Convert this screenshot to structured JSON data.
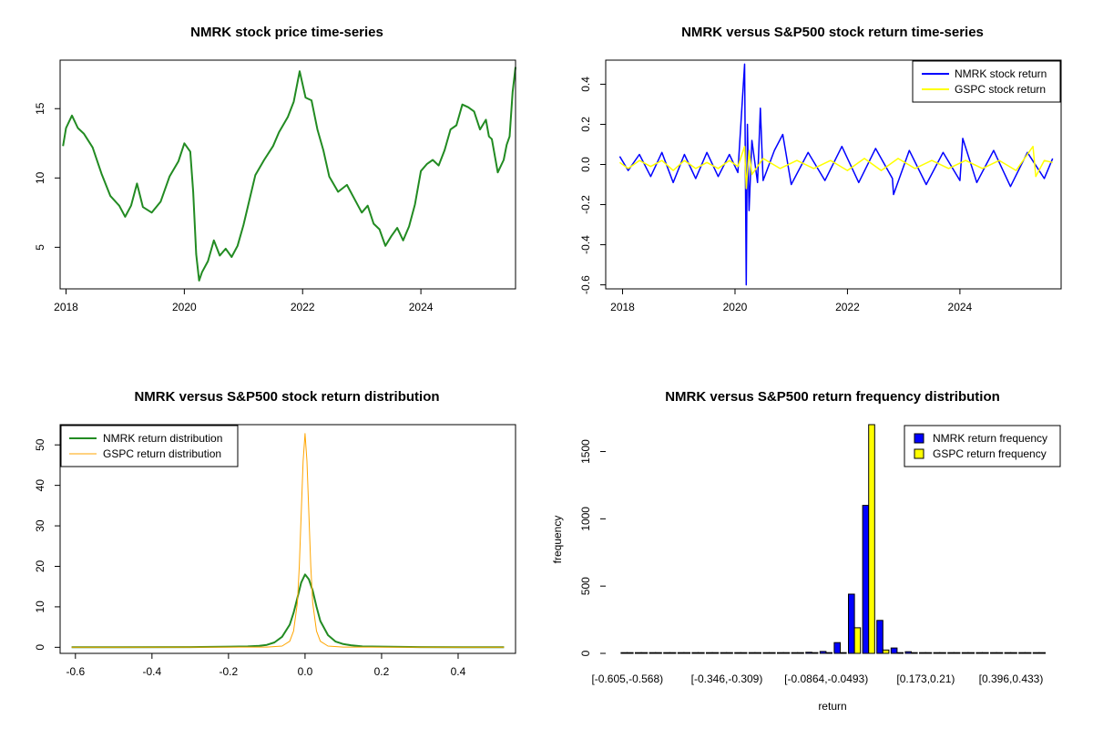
{
  "chart_data": [
    {
      "id": "price",
      "type": "line",
      "title": "NMRK stock price time-series",
      "xlabel": "",
      "ylabel": "",
      "xlim": [
        2017.9,
        2025.6
      ],
      "ylim": [
        2,
        18.5
      ],
      "x_ticks": [
        2018,
        2020,
        2022,
        2024
      ],
      "x_tick_labels": [
        "2018",
        "2020",
        "2022",
        "2024"
      ],
      "y_ticks": [
        5,
        10,
        15
      ],
      "y_tick_labels": [
        "5",
        "10",
        "15"
      ],
      "colors": {
        "line": "#228B22"
      },
      "series": [
        {
          "name": "NMRK",
          "x": [
            2017.95,
            2018.0,
            2018.1,
            2018.2,
            2018.3,
            2018.45,
            2018.6,
            2018.75,
            2018.9,
            2019.0,
            2019.1,
            2019.2,
            2019.3,
            2019.45,
            2019.6,
            2019.75,
            2019.9,
            2020.0,
            2020.1,
            2020.15,
            2020.2,
            2020.25,
            2020.3,
            2020.4,
            2020.5,
            2020.6,
            2020.7,
            2020.8,
            2020.9,
            2021.0,
            2021.1,
            2021.2,
            2021.35,
            2021.5,
            2021.6,
            2021.75,
            2021.85,
            2021.95,
            2022.05,
            2022.15,
            2022.25,
            2022.35,
            2022.45,
            2022.6,
            2022.75,
            2022.9,
            2023.0,
            2023.1,
            2023.2,
            2023.3,
            2023.4,
            2023.5,
            2023.6,
            2023.7,
            2023.8,
            2023.9,
            2024.0,
            2024.1,
            2024.2,
            2024.3,
            2024.4,
            2024.5,
            2024.6,
            2024.7,
            2024.8,
            2024.9,
            2025.0,
            2025.1,
            2025.15,
            2025.2,
            2025.3,
            2025.4,
            2025.45,
            2025.5,
            2025.55,
            2025.6
          ],
          "y": [
            12.3,
            13.6,
            14.5,
            13.6,
            13.2,
            12.2,
            10.3,
            8.7,
            8.0,
            7.2,
            8.0,
            9.6,
            7.9,
            7.5,
            8.3,
            10.1,
            11.2,
            12.5,
            11.9,
            9.0,
            4.5,
            2.6,
            3.2,
            4.0,
            5.5,
            4.4,
            4.9,
            4.3,
            5.1,
            6.6,
            8.4,
            10.2,
            11.3,
            12.3,
            13.3,
            14.4,
            15.5,
            17.7,
            15.8,
            15.6,
            13.5,
            12.0,
            10.1,
            9.0,
            9.5,
            8.3,
            7.5,
            8.0,
            6.7,
            6.3,
            5.1,
            5.8,
            6.4,
            5.5,
            6.5,
            8.1,
            10.5,
            11.0,
            11.3,
            10.9,
            12.0,
            13.5,
            13.8,
            15.3,
            15.1,
            14.8,
            13.5,
            14.2,
            13.0,
            12.8,
            10.4,
            11.3,
            12.4,
            13.0,
            16.2,
            18.0
          ]
        }
      ]
    },
    {
      "id": "returns",
      "type": "line",
      "title": "NMRK versus S&P500 stock return time-series",
      "xlabel": "",
      "ylabel": "",
      "xlim": [
        2017.7,
        2025.8
      ],
      "ylim": [
        -0.62,
        0.52
      ],
      "x_ticks": [
        2018,
        2020,
        2022,
        2024
      ],
      "x_tick_labels": [
        "2018",
        "2020",
        "2022",
        "2024"
      ],
      "y_ticks": [
        -0.6,
        -0.4,
        -0.2,
        0.0,
        0.2,
        0.4
      ],
      "y_tick_labels": [
        "-0.6",
        "-0.4",
        "-0.2",
        "0.0",
        "0.2",
        "0.4"
      ],
      "legend": {
        "placement": "top-right",
        "entries": [
          "NMRK stock return",
          "GSPC stock return"
        ]
      },
      "colors": {
        "nmrk": "#0000FF",
        "gspc": "#FFFF00"
      },
      "series": [
        {
          "name": "NMRK stock return",
          "x": [
            2017.95,
            2018.1,
            2018.3,
            2018.5,
            2018.7,
            2018.9,
            2019.1,
            2019.3,
            2019.5,
            2019.7,
            2019.9,
            2020.05,
            2020.17,
            2020.2,
            2020.22,
            2020.25,
            2020.3,
            2020.4,
            2020.45,
            2020.5,
            2020.7,
            2020.85,
            2021.0,
            2021.3,
            2021.6,
            2021.9,
            2022.2,
            2022.5,
            2022.8,
            2022.82,
            2023.1,
            2023.4,
            2023.7,
            2024.0,
            2024.05,
            2024.3,
            2024.6,
            2024.9,
            2025.2,
            2025.5,
            2025.65
          ],
          "y": [
            0.04,
            -0.03,
            0.05,
            -0.06,
            0.06,
            -0.09,
            0.05,
            -0.07,
            0.06,
            -0.06,
            0.05,
            -0.04,
            0.5,
            -0.6,
            0.2,
            -0.23,
            0.12,
            -0.09,
            0.28,
            -0.08,
            0.07,
            0.15,
            -0.1,
            0.06,
            -0.08,
            0.09,
            -0.09,
            0.08,
            -0.07,
            -0.15,
            0.07,
            -0.1,
            0.06,
            -0.08,
            0.13,
            -0.09,
            0.07,
            -0.11,
            0.06,
            -0.07,
            0.03
          ]
        },
        {
          "name": "GSPC stock return",
          "x": [
            2017.95,
            2018.1,
            2018.3,
            2018.5,
            2018.7,
            2018.9,
            2019.1,
            2019.3,
            2019.5,
            2019.7,
            2019.9,
            2020.05,
            2020.17,
            2020.2,
            2020.25,
            2020.3,
            2020.5,
            2020.8,
            2021.1,
            2021.4,
            2021.7,
            2022.0,
            2022.3,
            2022.6,
            2022.9,
            2023.2,
            2023.5,
            2023.8,
            2024.1,
            2024.4,
            2024.7,
            2025.0,
            2025.3,
            2025.35,
            2025.5,
            2025.65
          ],
          "y": [
            0.01,
            -0.02,
            0.02,
            -0.01,
            0.02,
            -0.03,
            0.02,
            -0.02,
            0.01,
            -0.02,
            0.02,
            -0.01,
            0.09,
            -0.12,
            0.07,
            -0.05,
            0.03,
            -0.02,
            0.02,
            -0.02,
            0.02,
            -0.03,
            0.03,
            -0.03,
            0.03,
            -0.02,
            0.02,
            -0.02,
            0.02,
            -0.02,
            0.02,
            -0.03,
            0.09,
            -0.06,
            0.02,
            0.01
          ]
        }
      ]
    },
    {
      "id": "density",
      "type": "line",
      "title": "NMRK versus S&P500 stock return distribution",
      "xlabel": "",
      "ylabel": "",
      "xlim": [
        -0.64,
        0.55
      ],
      "ylim": [
        -1.5,
        55
      ],
      "x_ticks": [
        -0.6,
        -0.4,
        -0.2,
        0.0,
        0.2,
        0.4
      ],
      "x_tick_labels": [
        "-0.6",
        "-0.4",
        "-0.2",
        "0.0",
        "0.2",
        "0.4"
      ],
      "y_ticks": [
        0,
        10,
        20,
        30,
        40,
        50
      ],
      "y_tick_labels": [
        "0",
        "10",
        "20",
        "30",
        "40",
        "50"
      ],
      "legend": {
        "placement": "top-left",
        "entries": [
          "NMRK return distribution",
          "GSPC return distribution"
        ]
      },
      "colors": {
        "nmrk": "#228B22",
        "gspc": "#FFA500"
      },
      "series": [
        {
          "name": "NMRK return distribution",
          "x": [
            -0.61,
            -0.3,
            -0.15,
            -0.12,
            -0.1,
            -0.08,
            -0.06,
            -0.04,
            -0.03,
            -0.02,
            -0.01,
            0.0,
            0.01,
            0.02,
            0.03,
            0.04,
            0.06,
            0.08,
            0.1,
            0.12,
            0.15,
            0.3,
            0.52
          ],
          "y": [
            0.0,
            0.05,
            0.2,
            0.35,
            0.6,
            1.2,
            2.6,
            5.6,
            8.5,
            12.2,
            16.0,
            18.0,
            16.8,
            14.0,
            10.0,
            6.5,
            3.0,
            1.4,
            0.8,
            0.5,
            0.2,
            0.05,
            0.0
          ]
        },
        {
          "name": "GSPC return distribution",
          "x": [
            -0.61,
            -0.1,
            -0.06,
            -0.04,
            -0.03,
            -0.02,
            -0.015,
            -0.01,
            -0.005,
            0.0,
            0.005,
            0.01,
            0.015,
            0.02,
            0.03,
            0.04,
            0.06,
            0.1,
            0.52
          ],
          "y": [
            0.0,
            0.05,
            0.3,
            1.5,
            4.0,
            11.0,
            20.0,
            33.0,
            46.0,
            52.8,
            46.0,
            33.0,
            20.0,
            11.0,
            4.0,
            1.5,
            0.3,
            0.05,
            0.0
          ]
        }
      ]
    },
    {
      "id": "frequency",
      "type": "bar",
      "title": "NMRK versus S&P500 return frequency distribution",
      "xlabel": "return",
      "ylabel": "frequency",
      "ylim": [
        0,
        1700
      ],
      "y_ticks": [
        0,
        500,
        1000,
        1500
      ],
      "y_tick_labels": [
        "0",
        "500",
        "1000",
        "1500"
      ],
      "x_tick_labels": [
        "[-0.605,-0.568)",
        "[-0.346,-0.309)",
        "[-0.0864,-0.0493)",
        "[0.173,0.21)",
        "[0.396,0.433)"
      ],
      "x_tick_bin_index": [
        0,
        7,
        14,
        21,
        27
      ],
      "legend": {
        "placement": "top-right",
        "entries": [
          "NMRK return frequency",
          "GSPC return frequency"
        ]
      },
      "colors": {
        "nmrk": "#0000FF",
        "gspc": "#FFFF00"
      },
      "num_bins": 30,
      "series": [
        {
          "name": "NMRK return frequency",
          "values": [
            1,
            0,
            0,
            0,
            0,
            0,
            0,
            0,
            0,
            0,
            0,
            0,
            3,
            8,
            14,
            80,
            440,
            1100,
            245,
            40,
            12,
            5,
            2,
            1,
            0,
            0,
            0,
            0,
            0,
            1
          ]
        },
        {
          "name": "GSPC return frequency",
          "values": [
            0,
            0,
            0,
            0,
            0,
            0,
            0,
            0,
            0,
            0,
            0,
            0,
            0,
            0,
            1,
            5,
            190,
            1700,
            25,
            2,
            0,
            0,
            0,
            0,
            0,
            0,
            0,
            0,
            0,
            0
          ]
        }
      ]
    }
  ]
}
